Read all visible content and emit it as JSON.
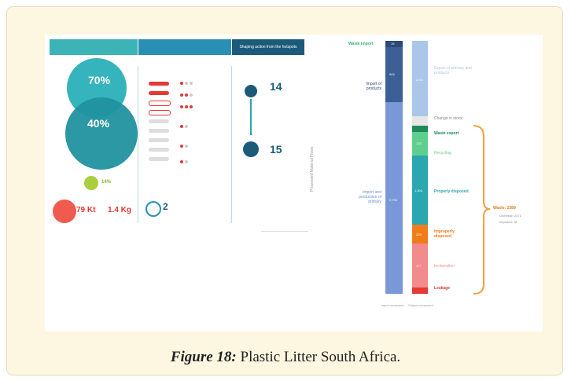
{
  "caption": {
    "label": "Figure 18:",
    "text": "Plastic Litter South Africa."
  },
  "infographic": {
    "headers": [
      "",
      "",
      "Shaping action from the hotspots"
    ],
    "circle_outer_value": "70%",
    "circle_inner_value": "40%",
    "small_circle_value": "14%",
    "stat_left_value": "79 Kt",
    "stat_right_value": "1.4 Kg",
    "footer_value": "2",
    "action_values": [
      "14",
      "15"
    ]
  },
  "flow": {
    "left_labels": [
      "Waste import",
      "Import of products",
      "Import and production of primary"
    ],
    "left_values": [
      "19",
      "904",
      "2,794"
    ],
    "right_labels": [
      "Export of primary and products",
      "Change in stock",
      "Waste export",
      "Recycling",
      "Properly disposed",
      "Improperly disposed",
      "Incineration",
      "Leakage"
    ],
    "right_values": [
      "1,014",
      "175",
      "1,304",
      "223",
      "477"
    ],
    "col_labels": [
      "Input composed",
      "Output composed"
    ],
    "waste_total": "Waste: 2389",
    "waste_domestic": "Domestic: 2371",
    "waste_imported": "Imported: 18",
    "vertical_label": "Processed Material Flows"
  },
  "colors": {
    "teal": "#2aa7b0",
    "blue_band": "#1f7fa8",
    "navy": "#2a4a7a",
    "mid_blue": "#6b8fd0",
    "green": "#2bb673",
    "orange": "#f07d1a",
    "red": "#e53935",
    "pink": "#f28b8b"
  }
}
